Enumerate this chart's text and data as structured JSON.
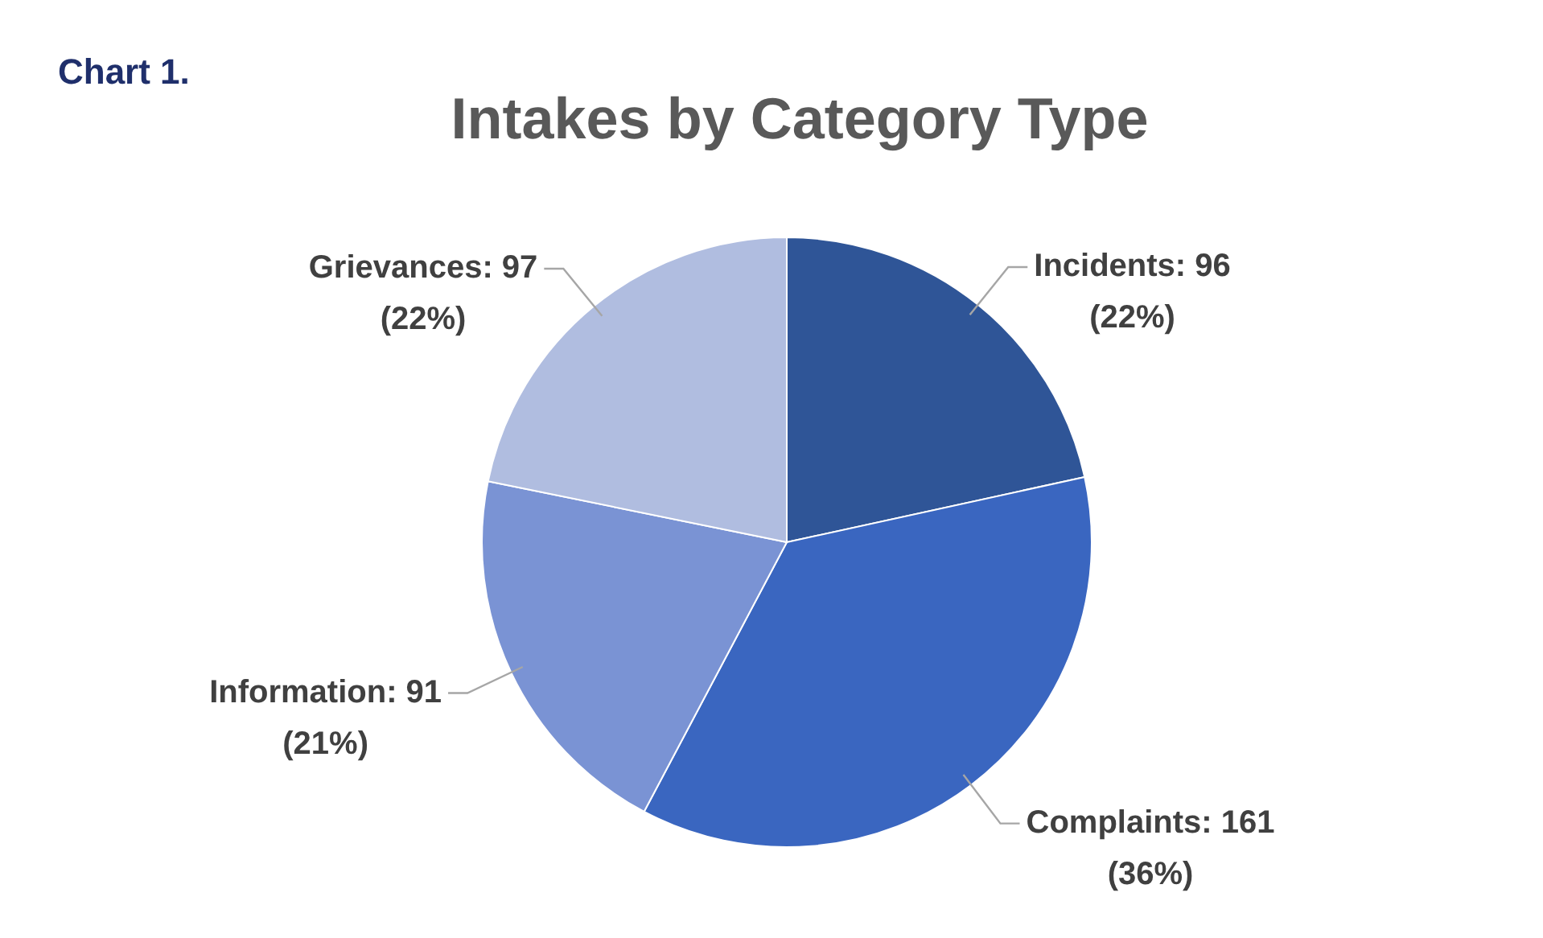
{
  "chart_data": {
    "type": "pie",
    "title": "Intakes by Category Type",
    "annotations": [
      "Chart 1."
    ],
    "categories": [
      "Incidents",
      "Complaints",
      "Information",
      "Grievances"
    ],
    "values": [
      96,
      161,
      91,
      97
    ],
    "colors": [
      "#2f5597",
      "#3a66c0",
      "#7a93d4",
      "#b0bde0"
    ],
    "value_labels": [
      "96\n(22%)",
      "161\n(36%)",
      "91\n(21%)",
      "97\n(22%)"
    ],
    "legend": false
  }
}
